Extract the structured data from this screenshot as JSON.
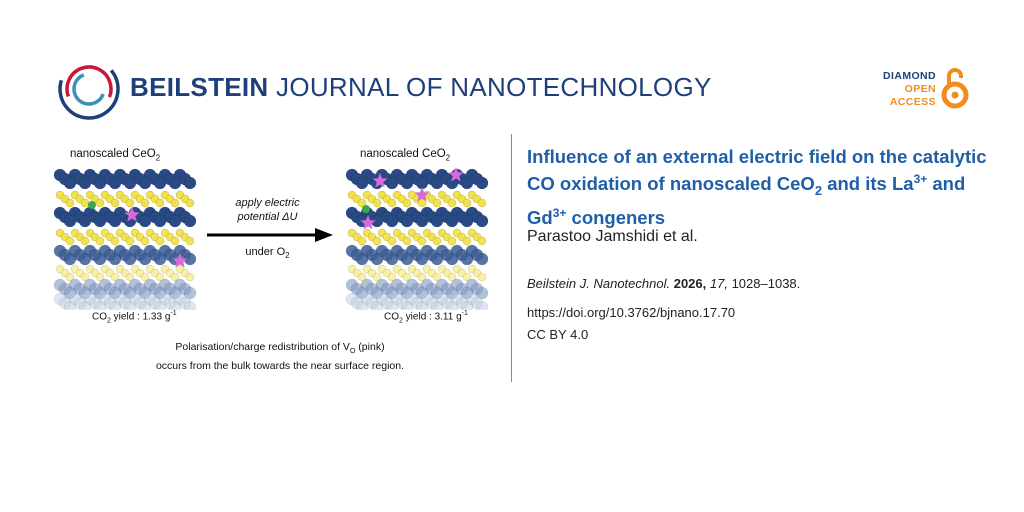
{
  "header": {
    "journal_bold": "BEILSTEIN",
    "journal_light": "JOURNAL OF NANOTECHNOLOGY",
    "oa_line1": "DIAMOND",
    "oa_line2": "OPEN",
    "oa_line3": "ACCESS",
    "colors": {
      "navy": "#1f3f7a",
      "orange": "#f28c1e",
      "red": "#c8183a"
    }
  },
  "figure": {
    "left_label_main": "nanoscaled CeO",
    "left_label_sub": "2",
    "right_label_main": "nanoscaled CeO",
    "right_label_sub": "2",
    "arrow_top_line1": "apply electric",
    "arrow_top_line2": "potential ΔU",
    "arrow_bottom_main": "under O",
    "arrow_bottom_sub": "2",
    "left_yield_main": "CO",
    "left_yield_sub": "2",
    "left_yield_rest": " yield : 1.33 g",
    "left_yield_sup": "-1",
    "right_yield_main": "CO",
    "right_yield_sub": "2",
    "right_yield_rest": " yield : 3.11 g",
    "right_yield_sup": "-1",
    "caption_line1_a": "Polarisation/charge redistribution of V",
    "caption_line1_sub": "O",
    "caption_line1_b": " (pink)",
    "caption_line2": "occurs from the bulk towards the near surface region."
  },
  "article": {
    "title_part1": "Influence of an external electric field on the catalytic CO oxidation of nanoscaled CeO",
    "title_sub": "2",
    "title_part2": " and its La",
    "title_sup1": "3+",
    "title_part3": " and Gd",
    "title_sup2": "3+",
    "title_part4": " congeners",
    "authors": "Parastoo Jamshidi et al.",
    "citation_journal": "Beilstein J. Nanotechnol.",
    "citation_year": "2026,",
    "citation_volume": "17,",
    "citation_pages": " 1028–1038.",
    "doi": "https://doi.org/10.3762/bjnano.17.70",
    "license": "CC BY 4.0"
  }
}
